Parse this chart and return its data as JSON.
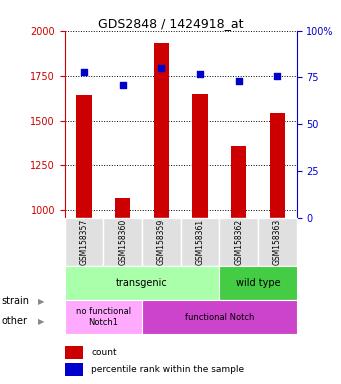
{
  "title": "GDS2848 / 1424918_at",
  "samples": [
    "GSM158357",
    "GSM158360",
    "GSM158359",
    "GSM158361",
    "GSM158362",
    "GSM158363"
  ],
  "counts": [
    1640,
    1070,
    1930,
    1650,
    1360,
    1540
  ],
  "percentiles": [
    78,
    71,
    80,
    77,
    73,
    76
  ],
  "ylim_left": [
    960,
    2000
  ],
  "ylim_right": [
    0,
    100
  ],
  "yticks_left": [
    1000,
    1250,
    1500,
    1750,
    2000
  ],
  "yticks_right": [
    0,
    25,
    50,
    75,
    100
  ],
  "bar_color": "#cc0000",
  "dot_color": "#0000cc",
  "strain_labels": [
    {
      "label": "transgenic",
      "span": [
        0,
        4
      ],
      "color": "#aaffaa"
    },
    {
      "label": "wild type",
      "span": [
        4,
        6
      ],
      "color": "#44cc44"
    }
  ],
  "other_labels": [
    {
      "label": "no functional\nNotch1",
      "span": [
        0,
        2
      ],
      "color": "#ffaaff"
    },
    {
      "label": "functional Notch",
      "span": [
        2,
        6
      ],
      "color": "#cc44cc"
    }
  ],
  "legend_count_label": "count",
  "legend_pct_label": "percentile rank within the sample",
  "tick_color_left": "#cc0000",
  "tick_color_right": "#0000cc",
  "bar_bottom": 960,
  "bg_color": "#ffffff",
  "panel_bg": "#e0e0e0"
}
